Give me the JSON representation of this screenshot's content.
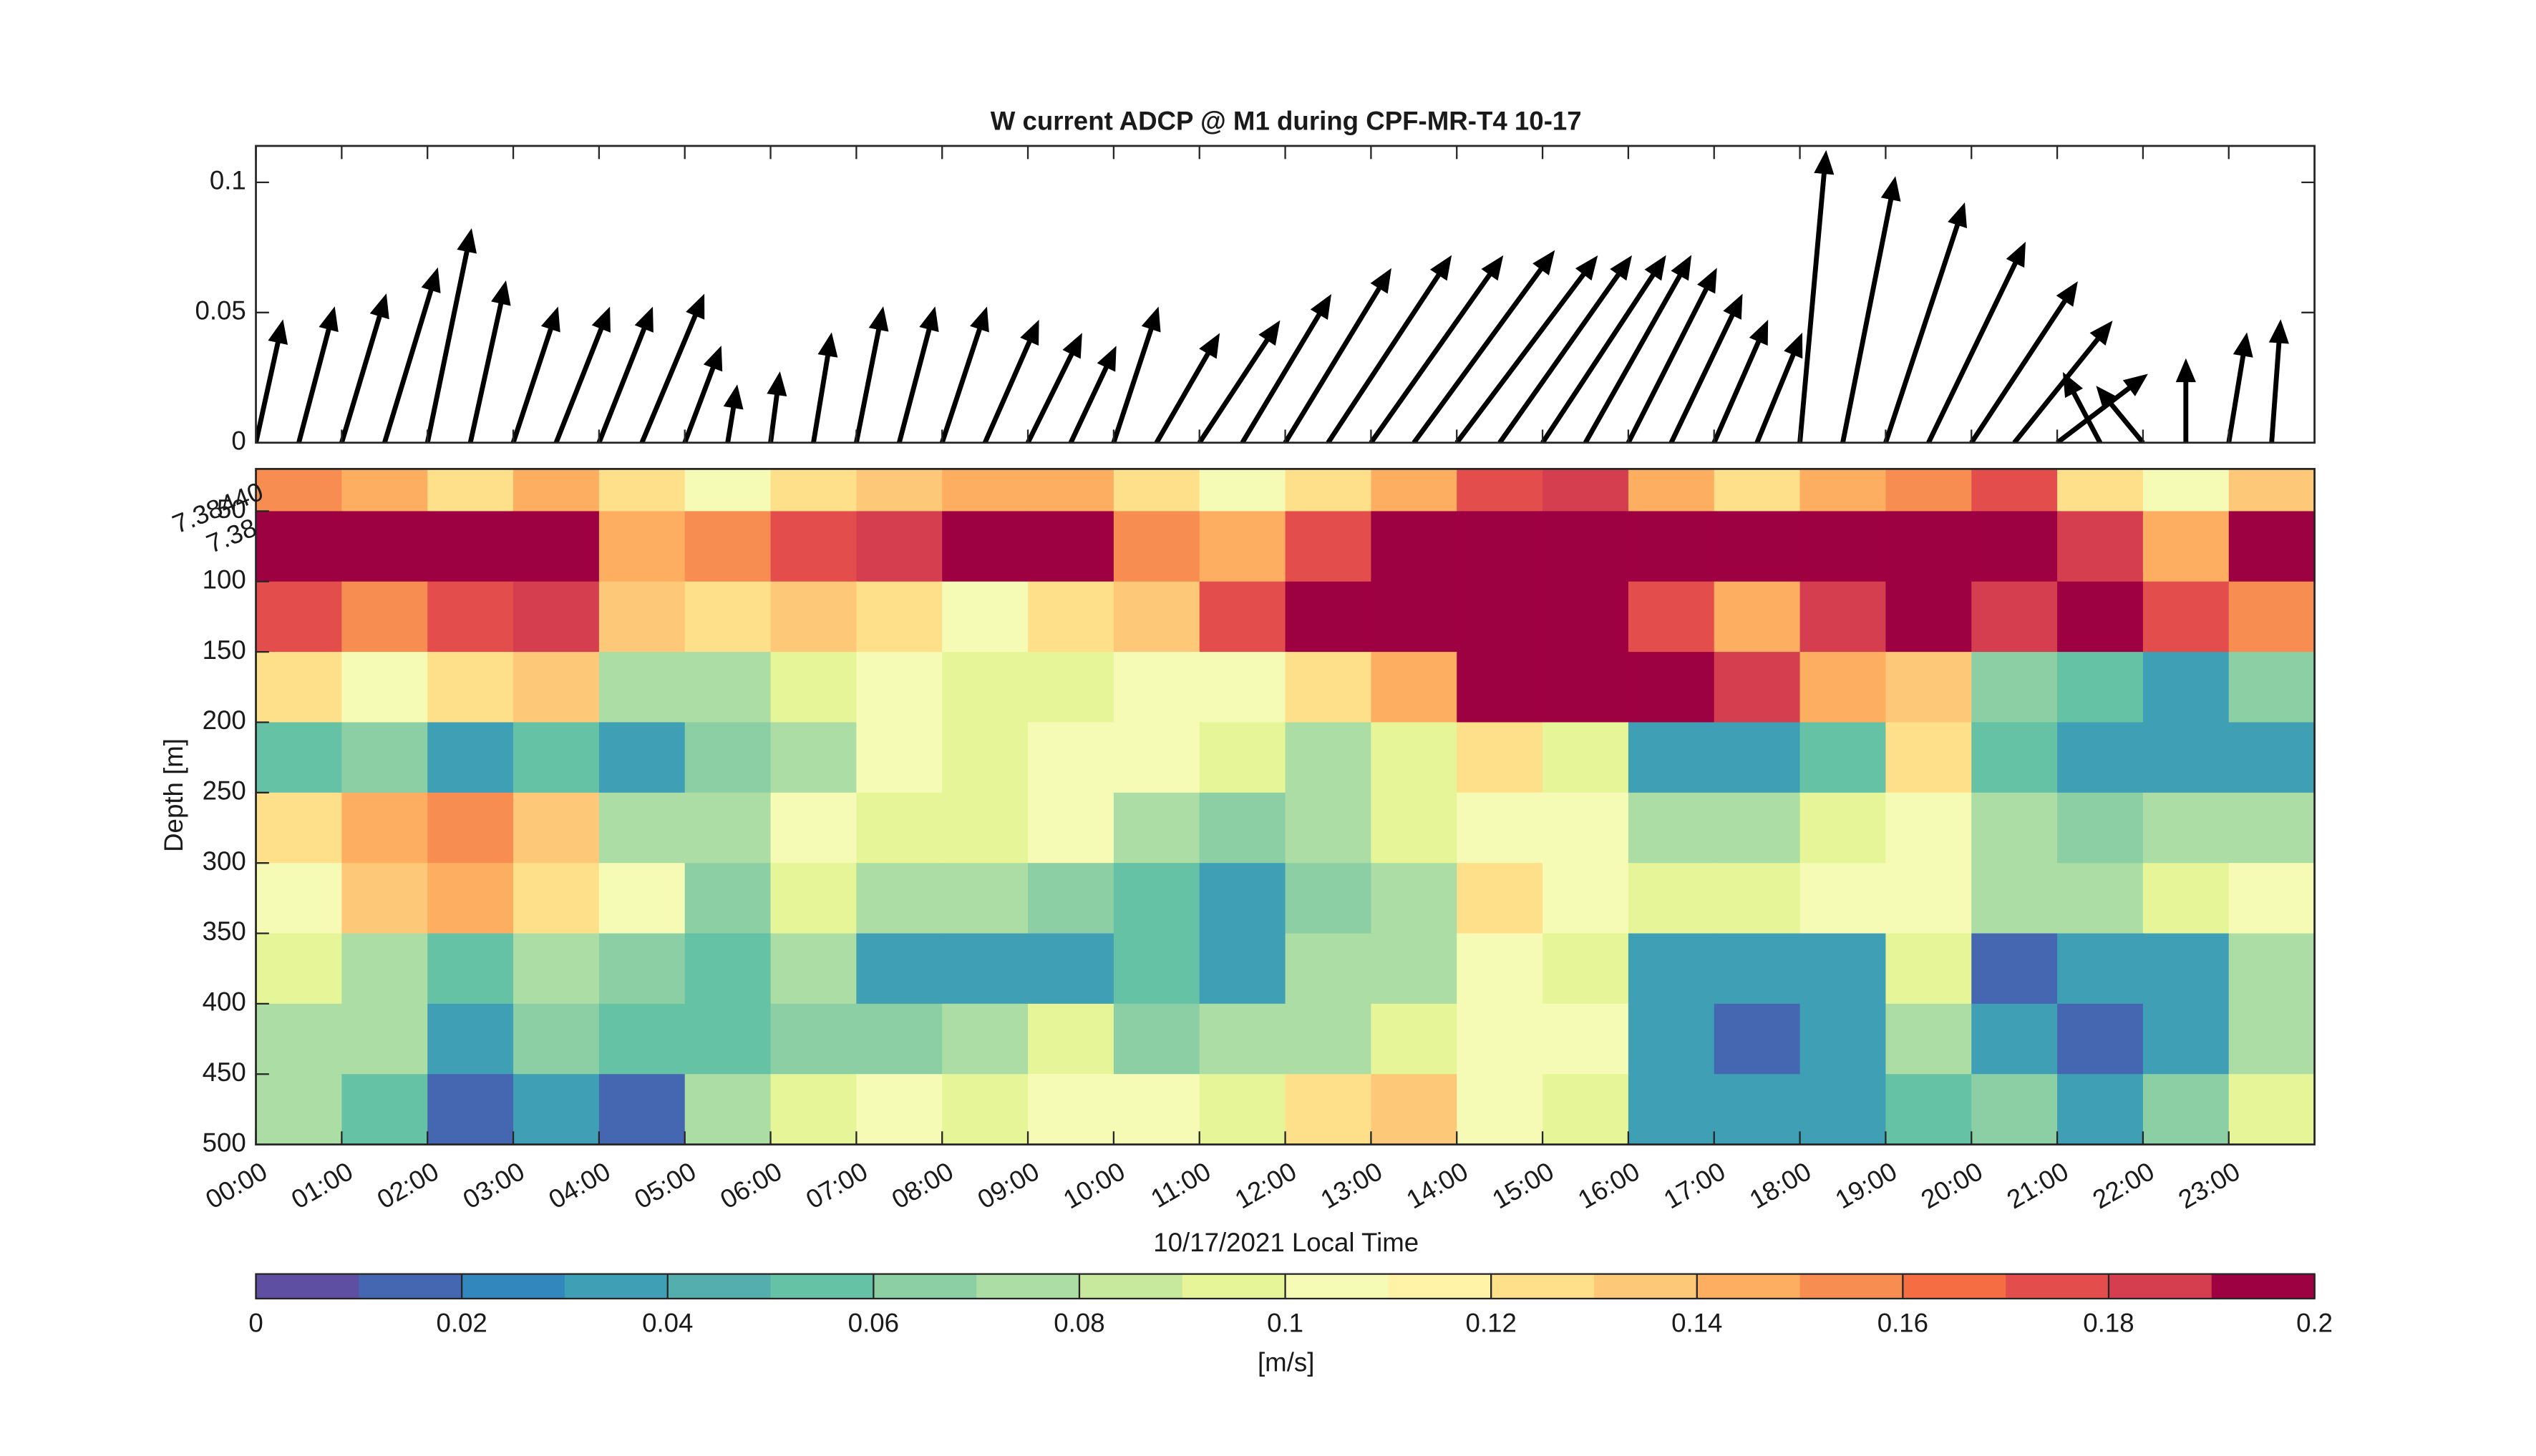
{
  "chart_data": [
    {
      "type": "quiver",
      "title": "W current ADCP @ M1 during CPF-MR-T4 10-17",
      "x": [
        0,
        0.5,
        1,
        1.5,
        2,
        2.5,
        3,
        3.5,
        4,
        4.5,
        5,
        5.5,
        6,
        6.5,
        7,
        7.5,
        8,
        8.5,
        9,
        9.5,
        10,
        10.5,
        11,
        11.5,
        12,
        12.5,
        13,
        13.5,
        14,
        14.5,
        15,
        15.5,
        16,
        16.5,
        17,
        17.5,
        18,
        18.5,
        19,
        19.5,
        20,
        20.5,
        21,
        21.5,
        22,
        22.5,
        23,
        23.5
      ],
      "u": [
        0.3,
        0.4,
        0.5,
        0.6,
        0.5,
        0.4,
        0.5,
        0.6,
        0.6,
        0.7,
        0.4,
        0.1,
        0.1,
        0.2,
        0.3,
        0.4,
        0.5,
        0.6,
        0.6,
        0.5,
        0.5,
        0.7,
        0.9,
        1.0,
        1.2,
        1.4,
        1.5,
        1.6,
        1.6,
        1.5,
        1.4,
        1.2,
        1.0,
        0.8,
        0.6,
        0.5,
        0.3,
        0.6,
        0.9,
        1.1,
        1.2,
        1.1,
        1.0,
        -0.4,
        -0.5,
        0.0,
        0.2,
        0.1
      ],
      "v": [
        0.045,
        0.05,
        0.055,
        0.065,
        0.08,
        0.06,
        0.05,
        0.05,
        0.05,
        0.055,
        0.035,
        0.02,
        0.025,
        0.04,
        0.05,
        0.05,
        0.05,
        0.045,
        0.04,
        0.035,
        0.05,
        0.04,
        0.045,
        0.055,
        0.065,
        0.07,
        0.07,
        0.072,
        0.07,
        0.07,
        0.07,
        0.07,
        0.065,
        0.055,
        0.045,
        0.04,
        0.11,
        0.1,
        0.09,
        0.075,
        0.06,
        0.045,
        0.025,
        0.025,
        0.02,
        0.03,
        0.04,
        0.045
      ],
      "color": "#000000",
      "xlim": [
        0,
        24
      ],
      "ylim": [
        0,
        0.114
      ],
      "xticks": [
        0,
        1,
        2,
        3,
        4,
        5,
        6,
        7,
        8,
        9,
        10,
        11,
        12,
        13,
        14,
        15,
        16,
        17,
        18,
        19,
        20,
        21,
        22,
        23
      ],
      "yticks": [
        0,
        0.05,
        0.1
      ]
    },
    {
      "type": "heatmap",
      "xlabel": "10/17/2021 Local Time",
      "ylabel": "Depth [m]",
      "x_edges": [
        0,
        1,
        2,
        3,
        4,
        5,
        6,
        7,
        8,
        9,
        10,
        11,
        12,
        13,
        14,
        15,
        16,
        17,
        18,
        19,
        20,
        21,
        22,
        23,
        24
      ],
      "y_edges": [
        20,
        50,
        100,
        150,
        200,
        250,
        300,
        350,
        400,
        450,
        500
      ],
      "values": [
        [
          0.16,
          0.14,
          0.12,
          0.15,
          0.12,
          0.11,
          0.12,
          0.13,
          0.15,
          0.14,
          0.12,
          0.11,
          0.12,
          0.14,
          0.17,
          0.18,
          0.15,
          0.12,
          0.14,
          0.16,
          0.17,
          0.12,
          0.11,
          0.13
        ],
        [
          0.2,
          0.2,
          0.19,
          0.2,
          0.15,
          0.16,
          0.17,
          0.18,
          0.19,
          0.2,
          0.16,
          0.15,
          0.17,
          0.2,
          0.2,
          0.2,
          0.2,
          0.2,
          0.2,
          0.2,
          0.2,
          0.18,
          0.15,
          0.2
        ],
        [
          0.17,
          0.16,
          0.17,
          0.18,
          0.13,
          0.12,
          0.13,
          0.12,
          0.11,
          0.12,
          0.13,
          0.17,
          0.2,
          0.2,
          0.2,
          0.2,
          0.17,
          0.15,
          0.18,
          0.2,
          0.18,
          0.19,
          0.17,
          0.16
        ],
        [
          0.12,
          0.11,
          0.12,
          0.13,
          0.08,
          0.07,
          0.09,
          0.1,
          0.09,
          0.09,
          0.1,
          0.11,
          0.12,
          0.14,
          0.19,
          0.2,
          0.19,
          0.18,
          0.15,
          0.13,
          0.06,
          0.05,
          0.04,
          0.06
        ],
        [
          0.05,
          0.06,
          0.04,
          0.05,
          0.04,
          0.06,
          0.08,
          0.1,
          0.09,
          0.1,
          0.1,
          0.09,
          0.08,
          0.09,
          0.12,
          0.09,
          0.03,
          0.04,
          0.05,
          0.12,
          0.05,
          0.04,
          0.03,
          0.04
        ],
        [
          0.12,
          0.14,
          0.16,
          0.13,
          0.08,
          0.07,
          0.1,
          0.09,
          0.09,
          0.1,
          0.07,
          0.06,
          0.08,
          0.09,
          0.1,
          0.1,
          0.07,
          0.08,
          0.09,
          0.11,
          0.07,
          0.06,
          0.07,
          0.08
        ],
        [
          0.1,
          0.13,
          0.14,
          0.12,
          0.1,
          0.06,
          0.09,
          0.08,
          0.07,
          0.06,
          0.05,
          0.04,
          0.06,
          0.08,
          0.12,
          0.1,
          0.09,
          0.09,
          0.1,
          0.1,
          0.07,
          0.08,
          0.09,
          0.1
        ],
        [
          0.09,
          0.08,
          0.05,
          0.07,
          0.06,
          0.05,
          0.07,
          0.04,
          0.03,
          0.04,
          0.05,
          0.04,
          0.07,
          0.08,
          0.1,
          0.09,
          0.04,
          0.03,
          0.04,
          0.09,
          0.02,
          0.03,
          0.04,
          0.07
        ],
        [
          0.08,
          0.07,
          0.03,
          0.06,
          0.05,
          0.05,
          0.06,
          0.06,
          0.07,
          0.09,
          0.06,
          0.08,
          0.07,
          0.09,
          0.1,
          0.1,
          0.03,
          0.02,
          0.03,
          0.08,
          0.03,
          0.02,
          0.04,
          0.08
        ],
        [
          0.07,
          0.05,
          0.02,
          0.03,
          0.02,
          0.07,
          0.09,
          0.1,
          0.09,
          0.1,
          0.11,
          0.09,
          0.12,
          0.13,
          0.1,
          0.09,
          0.04,
          0.03,
          0.04,
          0.05,
          0.06,
          0.04,
          0.06,
          0.09
        ]
      ],
      "xlim": [
        0,
        24
      ],
      "ylim": [
        500,
        20
      ],
      "reverse_y": true,
      "xticks": [
        {
          "value": 0,
          "label": "00:00"
        },
        {
          "value": 1,
          "label": "01:00"
        },
        {
          "value": 2,
          "label": "02:00"
        },
        {
          "value": 3,
          "label": "03:00"
        },
        {
          "value": 4,
          "label": "04:00"
        },
        {
          "value": 5,
          "label": "05:00"
        },
        {
          "value": 6,
          "label": "06:00"
        },
        {
          "value": 7,
          "label": "07:00"
        },
        {
          "value": 8,
          "label": "08:00"
        },
        {
          "value": 9,
          "label": "09:00"
        },
        {
          "value": 10,
          "label": "10:00"
        },
        {
          "value": 11,
          "label": "11:00"
        },
        {
          "value": 12,
          "label": "12:00"
        },
        {
          "value": 13,
          "label": "13:00"
        },
        {
          "value": 14,
          "label": "14:00"
        },
        {
          "value": 15,
          "label": "15:00"
        },
        {
          "value": 16,
          "label": "16:00"
        },
        {
          "value": 17,
          "label": "17:00"
        },
        {
          "value": 18,
          "label": "18:00"
        },
        {
          "value": 19,
          "label": "19:00"
        },
        {
          "value": 20,
          "label": "20:00"
        },
        {
          "value": 21,
          "label": "21:00"
        },
        {
          "value": 22,
          "label": "22:00"
        },
        {
          "value": 23,
          "label": "23:00"
        }
      ],
      "yticks": [
        50,
        100,
        150,
        200,
        250,
        300,
        350,
        400,
        450,
        500
      ],
      "annotations": [
        "7.38440",
        "7.38"
      ],
      "clim": [
        0,
        0.2
      ],
      "colormap": [
        "#5e4fa2",
        "#4566b0",
        "#3288bd",
        "#3f9fb5",
        "#54aead",
        "#66c2a5",
        "#8ccfa4",
        "#abdda4",
        "#c7e99e",
        "#e6f598",
        "#f5fbb5",
        "#fff3a8",
        "#fee08b",
        "#fdc877",
        "#fdae61",
        "#f88d52",
        "#f46d43",
        "#e34e4c",
        "#d53e4f",
        "#9e0142"
      ],
      "colorbar_ticks": [
        0,
        0.02,
        0.04,
        0.06,
        0.08,
        0.1,
        0.12,
        0.14,
        0.16,
        0.18,
        0.2
      ],
      "colorbar_label": "[m/s]"
    }
  ]
}
